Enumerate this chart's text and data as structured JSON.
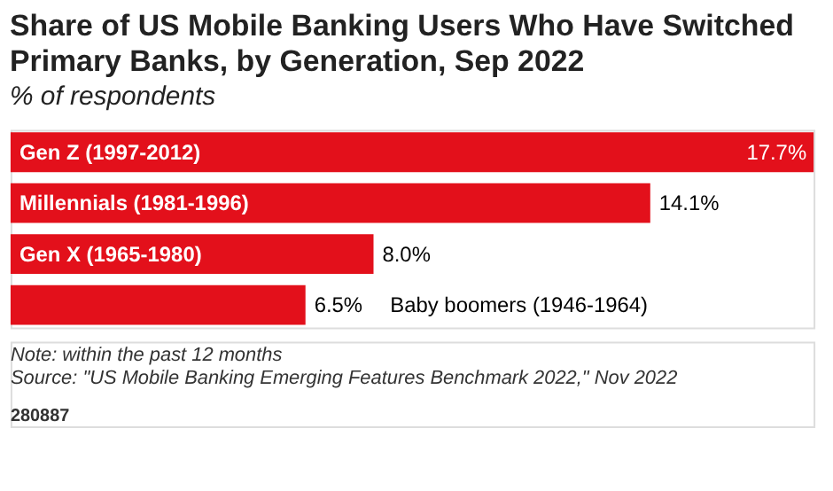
{
  "chart_data": {
    "type": "bar",
    "orientation": "horizontal",
    "title": "Share of US Mobile Banking Users Who Have Switched Primary Banks, by Generation, Sep 2022",
    "subtitle": "% of respondents",
    "categories": [
      "Gen Z (1997-2012)",
      "Millennials (1981-1996)",
      "Gen X (1965-1980)",
      "Baby boomers (1946-1964)"
    ],
    "values": [
      17.7,
      14.1,
      8.0,
      6.5
    ],
    "value_labels": [
      "17.7%",
      "14.1%",
      "8.0%",
      "6.5%"
    ],
    "color": "#e3101b",
    "annotations": [
      "Note: within the past 12 months",
      "Source: \"US Mobile Banking Emerging Features Benchmark 2022,\" Nov 2022",
      "280887"
    ]
  }
}
